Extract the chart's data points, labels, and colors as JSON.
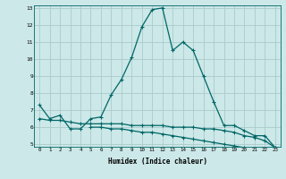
{
  "xlabel": "Humidex (Indice chaleur)",
  "x_values": [
    0,
    1,
    2,
    3,
    4,
    5,
    6,
    7,
    8,
    9,
    10,
    11,
    12,
    13,
    14,
    15,
    16,
    17,
    18,
    19,
    20,
    21,
    22,
    23
  ],
  "line1_y": [
    7.3,
    6.5,
    6.7,
    5.9,
    5.9,
    6.5,
    6.6,
    7.9,
    8.8,
    10.1,
    11.9,
    12.9,
    13.0,
    10.5,
    11.0,
    10.5,
    9.0,
    7.5,
    6.1,
    6.1,
    5.8,
    5.5,
    5.5,
    4.8
  ],
  "line2_y": [
    6.5,
    6.4,
    6.4,
    6.3,
    6.2,
    6.2,
    6.2,
    6.2,
    6.2,
    6.1,
    6.1,
    6.1,
    6.1,
    6.0,
    6.0,
    6.0,
    5.9,
    5.9,
    5.8,
    5.7,
    5.5,
    5.4,
    5.2,
    4.8
  ],
  "line3_y": [
    null,
    null,
    null,
    null,
    null,
    6.0,
    6.0,
    5.9,
    5.9,
    5.8,
    5.7,
    5.7,
    5.6,
    5.5,
    5.4,
    5.3,
    5.2,
    5.1,
    5.0,
    4.9,
    4.8,
    4.7,
    4.6,
    4.75
  ],
  "ylim": [
    5,
    13
  ],
  "xlim": [
    -0.5,
    23.5
  ],
  "yticks": [
    5,
    6,
    7,
    8,
    9,
    10,
    11,
    12,
    13
  ],
  "xticks": [
    0,
    1,
    2,
    3,
    4,
    5,
    6,
    7,
    8,
    9,
    10,
    11,
    12,
    13,
    14,
    15,
    16,
    17,
    18,
    19,
    20,
    21,
    22,
    23
  ],
  "line_color": "#006666",
  "bg_color": "#cce8e8",
  "grid_color": "#aacccc",
  "marker": "+",
  "marker_size": 3.5,
  "line_width": 0.9
}
